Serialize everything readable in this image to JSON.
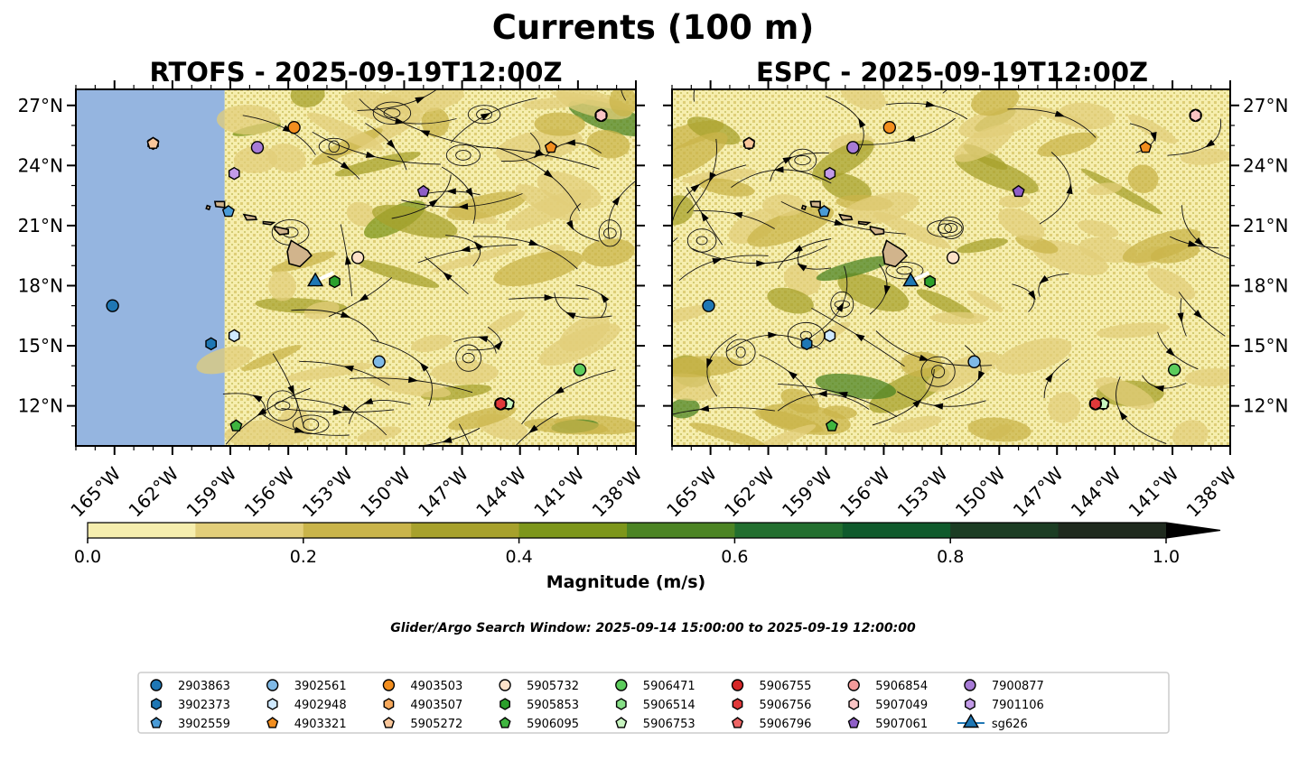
{
  "figure": {
    "title": "Currents (100 m)",
    "search_window": "Glider/Argo Search Window: 2025-09-14 15:00:00 to 2025-09-19 12:00:00"
  },
  "chart_data": {
    "type": "map",
    "panels": [
      {
        "title": "RTOFS - 2025-09-19T12:00Z",
        "model_data_lon_min": -159.3
      },
      {
        "title": "ESPC - 2025-09-19T12:00Z",
        "model_data_lon_min": -167
      }
    ],
    "extent": {
      "lon": [
        -167,
        -138
      ],
      "lat": [
        10,
        27.8
      ]
    },
    "lon_ticks": [
      -165,
      -162,
      -159,
      -156,
      -153,
      -150,
      -147,
      -144,
      -141,
      -138
    ],
    "lon_tick_labels": [
      "165°W",
      "162°W",
      "159°W",
      "156°W",
      "153°W",
      "150°W",
      "147°W",
      "144°W",
      "141°W",
      "138°W"
    ],
    "lat_ticks": [
      12,
      15,
      18,
      21,
      24,
      27
    ],
    "lat_tick_labels": [
      "12°N",
      "15°N",
      "18°N",
      "21°N",
      "24°N",
      "27°N"
    ],
    "colorbar": {
      "label": "Magnitude (m/s)",
      "range": [
        0,
        1.0
      ],
      "levels": [
        0,
        0.1,
        0.2,
        0.3,
        0.4,
        0.5,
        0.6,
        0.7,
        0.8,
        0.9,
        1.0
      ],
      "colors": [
        "#f6eeae",
        "#e2ce7a",
        "#c9b44a",
        "#a7a12c",
        "#7d961b",
        "#4c8424",
        "#236f2f",
        "#0f5a2c",
        "#1c3d24",
        "#1f2a1e"
      ],
      "tick_values": [
        0.0,
        0.2,
        0.4,
        0.6,
        0.8,
        1.0
      ],
      "tick_labels": [
        "0.0",
        "0.2",
        "0.4",
        "0.6",
        "0.8",
        "1.0"
      ],
      "extend": "max"
    },
    "platforms": [
      {
        "id": "2903863",
        "marker": "circle",
        "color": "#1f77b4",
        "lon": -165.1,
        "lat": 17.0
      },
      {
        "id": "3902373",
        "marker": "hexagon",
        "color": "#1f77b4",
        "lon": -160.0,
        "lat": 15.1
      },
      {
        "id": "3902559",
        "marker": "pentagon",
        "color": "#4a9bd6",
        "lon": -159.1,
        "lat": 21.7
      },
      {
        "id": "3902561",
        "marker": "circle",
        "color": "#7fb9e6",
        "lon": -151.3,
        "lat": 14.2
      },
      {
        "id": "4902948",
        "marker": "hexagon",
        "color": "#cfe9ff",
        "lon": -158.8,
        "lat": 15.5
      },
      {
        "id": "4903321",
        "marker": "pentagon",
        "color": "#f28e1f",
        "lon": -142.4,
        "lat": 24.9
      },
      {
        "id": "4903503",
        "marker": "circle",
        "color": "#f28e1f",
        "lon": -155.7,
        "lat": 25.9
      },
      {
        "id": "4903507",
        "marker": "hexagon",
        "color": "#f7a95c",
        "lon": -163.0,
        "lat": 25.1
      },
      {
        "id": "5905272",
        "marker": "pentagon",
        "color": "#f9c69a",
        "lon": -163.0,
        "lat": 25.1
      },
      {
        "id": "5905732",
        "marker": "circle",
        "color": "#fde1c8",
        "lon": -152.4,
        "lat": 19.4
      },
      {
        "id": "5905853",
        "marker": "hexagon",
        "color": "#2ca02c",
        "lon": -153.6,
        "lat": 18.2
      },
      {
        "id": "5906095",
        "marker": "pentagon",
        "color": "#3fb53f",
        "lon": -158.7,
        "lat": 11.0
      },
      {
        "id": "5906471",
        "marker": "circle",
        "color": "#5ccc5c",
        "lon": -140.9,
        "lat": 13.8
      },
      {
        "id": "5906514",
        "marker": "hexagon",
        "color": "#86df86",
        "lon": -144.6,
        "lat": 12.1
      },
      {
        "id": "5906753",
        "marker": "pentagon",
        "color": "#c8f5c0",
        "lon": -144.6,
        "lat": 12.1
      },
      {
        "id": "5906755",
        "marker": "circle",
        "color": "#d62728",
        "lon": -145.0,
        "lat": 12.1
      },
      {
        "id": "5906756",
        "marker": "hexagon",
        "color": "#e0393a",
        "lon": -145.0,
        "lat": 12.1
      },
      {
        "id": "5906796",
        "marker": "pentagon",
        "color": "#ee6666",
        "lon": -139.8,
        "lat": 26.5
      },
      {
        "id": "5906854",
        "marker": "circle",
        "color": "#f39a9a",
        "lon": -139.8,
        "lat": 26.5
      },
      {
        "id": "5907049",
        "marker": "hexagon",
        "color": "#f9c4c4",
        "lon": -139.8,
        "lat": 26.5
      },
      {
        "id": "5907061",
        "marker": "pentagon",
        "color": "#8f5fc7",
        "lon": -149.0,
        "lat": 22.7
      },
      {
        "id": "7900877",
        "marker": "circle",
        "color": "#a77bd6",
        "lon": -157.6,
        "lat": 24.9
      },
      {
        "id": "7901106",
        "marker": "hexagon",
        "color": "#c39be8",
        "lon": -158.8,
        "lat": 23.6
      },
      {
        "id": "sg626",
        "marker": "triangle",
        "color": "#1f77b4",
        "lon": -154.6,
        "lat": 18.2
      }
    ]
  }
}
